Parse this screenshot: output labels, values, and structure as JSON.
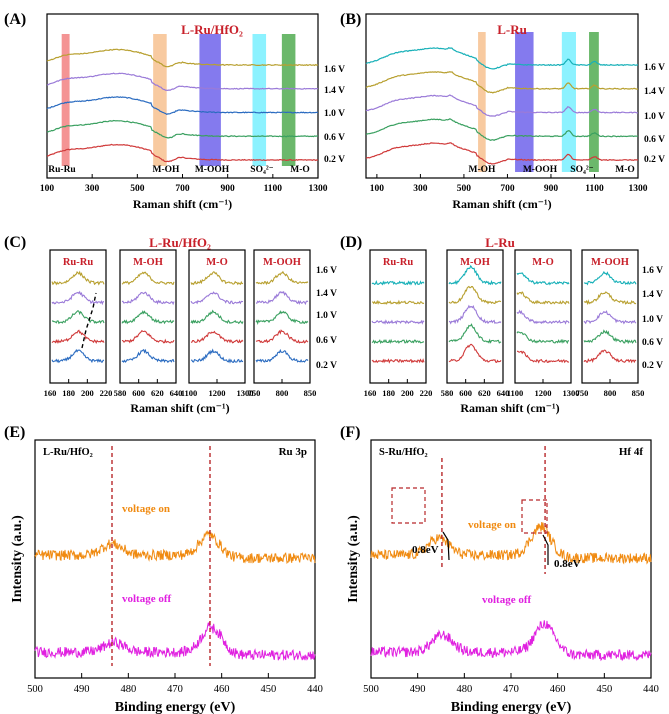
{
  "figure": {
    "panels": {
      "A": {
        "label": "(A)",
        "title": "L-Ru/HfO₂",
        "xlabel": "Raman shift (cm⁻¹)"
      },
      "B": {
        "label": "(B)",
        "title": "L-Ru",
        "xlabel": "Raman shift (cm⁻¹)"
      },
      "C": {
        "label": "(C)",
        "title": "L-Ru/HfO₂",
        "xlabel": "Raman shift (cm⁻¹)"
      },
      "D": {
        "label": "(D)",
        "title": "L-Ru",
        "xlabel": "Raman shift (cm⁻¹)"
      },
      "E": {
        "label": "(E)",
        "inner_label": "L-Ru/HfO₂",
        "corner_label": "Ru 3p",
        "xlabel": "Binding energy (eV)",
        "ylabel": "Intensity (a.u.)"
      },
      "F": {
        "label": "(F)",
        "inner_label": "S-Ru/HfO₂",
        "corner_label": "Hf 4f",
        "xlabel": "Binding energy (eV)",
        "ylabel": "Intensity (a.u.)"
      }
    }
  },
  "chart_data": [
    {
      "id": "A",
      "type": "line",
      "title": "L-Ru/HfO₂",
      "xlabel": "Raman shift (cm⁻¹)",
      "ylabel": "",
      "xlim": [
        100,
        1300
      ],
      "xticks": [
        100,
        300,
        500,
        700,
        900,
        1100,
        1300
      ],
      "bands": [
        {
          "name": "Ru-Ru",
          "range": [
            165,
            200
          ],
          "color": "#f07070"
        },
        {
          "name": "M-OH",
          "range": [
            570,
            630
          ],
          "color": "#f6b880"
        },
        {
          "name": "M-OOH",
          "range": [
            775,
            870
          ],
          "color": "#5b4de8"
        },
        {
          "name": "SO₄²⁻",
          "range": [
            1010,
            1070
          ],
          "color": "#66eeff"
        },
        {
          "name": "M-O",
          "range": [
            1140,
            1200
          ],
          "color": "#3aa03a"
        }
      ],
      "series": [
        {
          "name": "0.2 V",
          "color": "#d03a3a",
          "offset": 0.2
        },
        {
          "name": "0.6 V",
          "color": "#3aa060",
          "offset": 0.6
        },
        {
          "name": "1.0 V",
          "color": "#2a6bc0",
          "offset": 1.0
        },
        {
          "name": "1.4 V",
          "color": "#9a7ad8",
          "offset": 1.4
        },
        {
          "name": "1.6 V",
          "color": "#b8a030",
          "offset": 1.8
        }
      ],
      "features": {
        "broad_center": 410,
        "broad_width": 150,
        "broad_amp": 0.55,
        "peaks": [
          [
            600,
            0.04
          ],
          [
            680,
            0.05
          ]
        ]
      }
    },
    {
      "id": "B",
      "type": "line",
      "title": "L-Ru",
      "xlabel": "Raman shift (cm⁻¹)",
      "ylabel": "",
      "xlim": [
        50,
        1300
      ],
      "xticks": [
        100,
        300,
        500,
        700,
        900,
        1100,
        1300
      ],
      "bands": [
        {
          "name": "M-OH",
          "range": [
            565,
            600
          ],
          "color": "#f6b880"
        },
        {
          "name": "M-OOH",
          "range": [
            735,
            820
          ],
          "color": "#5b4de8"
        },
        {
          "name": "SO₄²⁻",
          "range": [
            950,
            1015
          ],
          "color": "#66eeff"
        },
        {
          "name": "M-O",
          "range": [
            1075,
            1120
          ],
          "color": "#3aa03a"
        }
      ],
      "series": [
        {
          "name": "0.2 V",
          "color": "#d03a3a",
          "offset": 0.2
        },
        {
          "name": "0.6 V",
          "color": "#3aa060",
          "offset": 0.6
        },
        {
          "name": "1.0 V",
          "color": "#9a7ad8",
          "offset": 1.0
        },
        {
          "name": "1.4 V",
          "color": "#b8a030",
          "offset": 1.4
        },
        {
          "name": "1.6 V",
          "color": "#17b0b8",
          "offset": 1.8
        }
      ],
      "features": {
        "broad_center": 370,
        "broad_width": 140,
        "broad_amp": 0.6,
        "peaks": [
          [
            980,
            0.2
          ],
          [
            1100,
            0.12
          ],
          [
            440,
            0.08
          ]
        ]
      }
    },
    {
      "id": "C",
      "type": "line",
      "title": "L-Ru/HfO₂",
      "xlabel": "Raman shift (cm⁻¹)",
      "subplots": [
        {
          "name": "Ru-Ru",
          "xlim": [
            160,
            220
          ],
          "xticks": [
            160,
            180,
            200,
            220
          ],
          "peak": 190
        },
        {
          "name": "M-OH",
          "xlim": [
            580,
            640
          ],
          "xticks": [
            580,
            600,
            620,
            640
          ],
          "peak": 605
        },
        {
          "name": "M-O",
          "xlim": [
            1100,
            1300
          ],
          "xticks": [
            1100,
            1200,
            1300
          ],
          "peak": 1185
        },
        {
          "name": "M-OOH",
          "xlim": [
            750,
            850
          ],
          "xticks": [
            750,
            800,
            850
          ],
          "peak": 800
        }
      ],
      "series": [
        {
          "name": "0.2 V",
          "color": "#2a6bc0"
        },
        {
          "name": "0.6 V",
          "color": "#d03a3a"
        },
        {
          "name": "1.0 V",
          "color": "#3aa060"
        },
        {
          "name": "1.4 V",
          "color": "#9a7ad8"
        },
        {
          "name": "1.6 V",
          "color": "#b8a030"
        }
      ]
    },
    {
      "id": "D",
      "type": "line",
      "title": "L-Ru",
      "xlabel": "Raman shift (cm⁻¹)",
      "subplots": [
        {
          "name": "Ru-Ru",
          "xlim": [
            160,
            220
          ],
          "xticks": [
            160,
            180,
            200,
            220
          ],
          "peak": null
        },
        {
          "name": "M-OH",
          "xlim": [
            580,
            640
          ],
          "xticks": [
            580,
            600,
            620,
            640
          ],
          "peak": 605
        },
        {
          "name": "M-O",
          "xlim": [
            1100,
            1300
          ],
          "xticks": [
            1100,
            1200,
            1300
          ],
          "peak": 1110
        },
        {
          "name": "M-OOH",
          "xlim": [
            750,
            850
          ],
          "xticks": [
            750,
            800,
            850
          ],
          "peak": 790
        }
      ],
      "series": [
        {
          "name": "0.2 V",
          "color": "#d03a3a"
        },
        {
          "name": "0.6 V",
          "color": "#3aa060"
        },
        {
          "name": "1.0 V",
          "color": "#9a7ad8"
        },
        {
          "name": "1.4 V",
          "color": "#b8a030"
        },
        {
          "name": "1.6 V",
          "color": "#17b0b8"
        }
      ]
    },
    {
      "id": "E",
      "type": "line",
      "title": "Ru 3p",
      "xlabel": "Binding energy (eV)",
      "ylabel": "Intensity (a.u.)",
      "xlim": [
        500,
        440
      ],
      "xticks": [
        500,
        490,
        480,
        470,
        460,
        450,
        440
      ],
      "reference_lines": [
        483.5,
        462.5
      ],
      "series": [
        {
          "name": "voltage on",
          "color": "#f08a10",
          "offset": 1.0,
          "peaks": [
            [
              483.5,
              0.12
            ],
            [
              462.5,
              0.22
            ]
          ]
        },
        {
          "name": "voltage off",
          "color": "#e020e0",
          "offset": 0.0,
          "peaks": [
            [
              483.0,
              0.1
            ],
            [
              462.0,
              0.28
            ]
          ]
        }
      ]
    },
    {
      "id": "F",
      "type": "line",
      "title": "Hf 4f",
      "xlabel": "Binding energy (eV)",
      "ylabel": "Intensity (a.u.)",
      "xlim": [
        500,
        440
      ],
      "xticks": [
        500,
        490,
        480,
        470,
        460,
        450,
        440
      ],
      "reference_lines": [
        484.8,
        462.7
      ],
      "shift_label": "0.8eV",
      "series": [
        {
          "name": "voltage on",
          "color": "#f08a10",
          "offset": 1.0,
          "peaks": [
            [
              485.5,
              0.18
            ],
            [
              463.5,
              0.3
            ]
          ]
        },
        {
          "name": "voltage off",
          "color": "#e020e0",
          "offset": 0.0,
          "peaks": [
            [
              484.7,
              0.18
            ],
            [
              462.7,
              0.3
            ]
          ]
        }
      ]
    }
  ]
}
